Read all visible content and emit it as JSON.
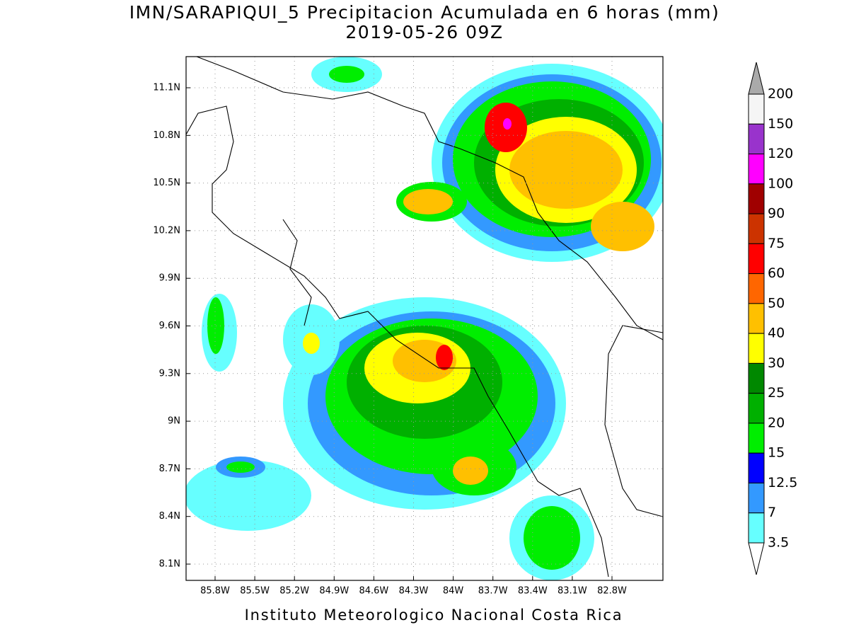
{
  "header": {
    "title": "IMN/SARAPIQUI_5 Precipitacion Acumulada en 6 horas (mm)",
    "subtitle": "2019-05-26 09Z"
  },
  "map": {
    "lon_ticks": [
      {
        "value": -85.8,
        "label": "85.8W"
      },
      {
        "value": -85.5,
        "label": "85.5W"
      },
      {
        "value": -85.2,
        "label": "85.2W"
      },
      {
        "value": -84.9,
        "label": "84.9W"
      },
      {
        "value": -84.6,
        "label": "84.6W"
      },
      {
        "value": -84.3,
        "label": "84.3W"
      },
      {
        "value": -84.0,
        "label": "84W"
      },
      {
        "value": -83.7,
        "label": "83.7W"
      },
      {
        "value": -83.4,
        "label": "83.4W"
      },
      {
        "value": -83.1,
        "label": "83.1W"
      },
      {
        "value": -82.8,
        "label": "82.8W"
      }
    ],
    "lat_ticks": [
      {
        "value": 11.1,
        "label": "11.1N"
      },
      {
        "value": 10.8,
        "label": "10.8N"
      },
      {
        "value": 10.5,
        "label": "10.5N"
      },
      {
        "value": 10.2,
        "label": "10.2N"
      },
      {
        "value": 9.9,
        "label": "9.9N"
      },
      {
        "value": 9.6,
        "label": "9.6N"
      },
      {
        "value": 9.3,
        "label": "9.3N"
      },
      {
        "value": 9.0,
        "label": "9N"
      },
      {
        "value": 8.7,
        "label": "8.7N"
      },
      {
        "value": 8.4,
        "label": "8.4N"
      },
      {
        "value": 8.1,
        "label": "8.1N"
      }
    ]
  },
  "colorbar": {
    "levels": [
      200,
      150,
      120,
      100,
      90,
      75,
      60,
      50,
      40,
      30,
      25,
      20,
      15,
      12.5,
      7,
      3.5
    ],
    "colors": [
      "#f5f5f5",
      "#9933cc",
      "#ff00ff",
      "#a00000",
      "#cc3300",
      "#ff0000",
      "#ff6600",
      "#ffc000",
      "#ffff00",
      "#008800",
      "#00b000",
      "#00ee00",
      "#0000ff",
      "#3399ff",
      "#66ffff"
    ],
    "over_color": "#aaaaaa",
    "under_color": "#ffffff"
  },
  "footer": {
    "text": "Instituto Meteorologico Nacional Costa Rica"
  }
}
